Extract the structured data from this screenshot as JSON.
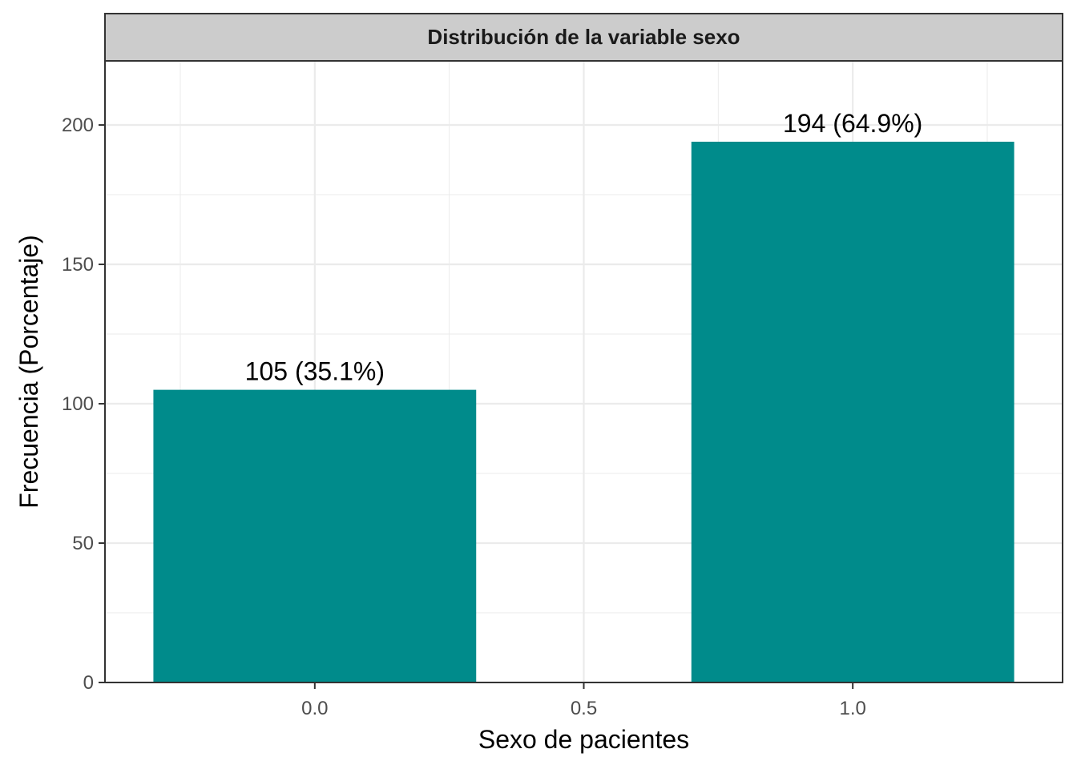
{
  "chart_data": {
    "type": "bar",
    "title": "Distribución de la variable sexo",
    "xlabel": "Sexo de pacientes",
    "ylabel": "Frecuencia (Porcentaje)",
    "x": [
      0,
      1
    ],
    "values": [
      105,
      194
    ],
    "data_labels": [
      "105 (35.1%)",
      "194 (64.9%)"
    ],
    "bar_width": 0.6,
    "xlim": [
      -0.39,
      1.39
    ],
    "ylim": [
      0,
      223
    ],
    "x_ticks": [
      0,
      0.5,
      1
    ],
    "x_tick_labels": [
      "0.0",
      "0.5",
      "1.0"
    ],
    "y_ticks": [
      0,
      50,
      100,
      150,
      200
    ],
    "y_tick_labels": [
      "0",
      "50",
      "100",
      "150",
      "200"
    ],
    "grid": true,
    "legend": "none",
    "bar_color": "#008B8B",
    "strip_color": "#CCCCCC",
    "grid_color": "#EBEBEB",
    "panel_border_color": "#333333"
  }
}
